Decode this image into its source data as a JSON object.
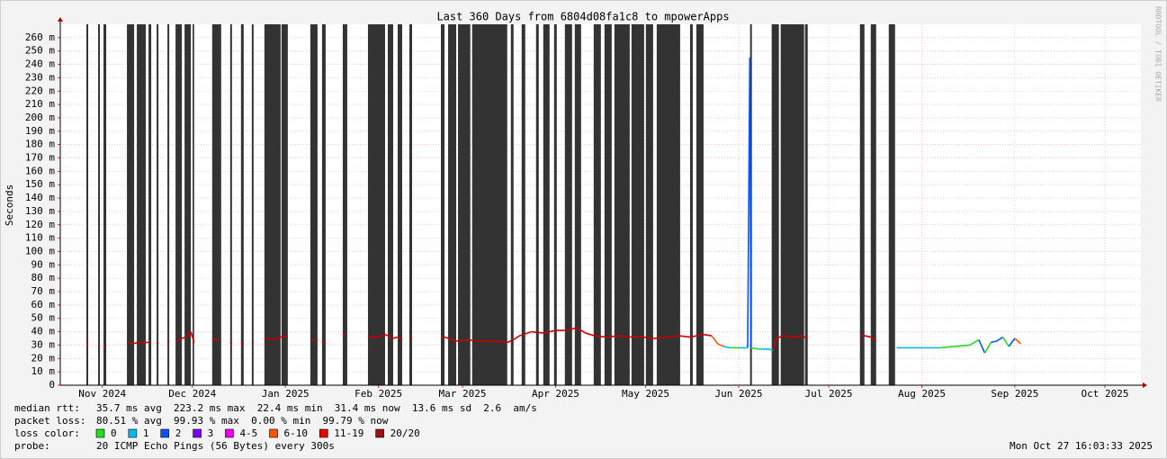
{
  "chart_data": {
    "type": "smokeping",
    "title": "Last 360 Days from 6804d08fa1c8 to mpowerApps",
    "y_label": "Seconds",
    "side_text": "RRDTOOL / TOBI OETIKER",
    "xlim": [
      0,
      360
    ],
    "ylim": [
      0,
      0.27
    ],
    "grid": true,
    "xticks": [
      {
        "value": 14,
        "label": "Nov 2024"
      },
      {
        "value": 44,
        "label": "Dec 2024"
      },
      {
        "value": 75,
        "label": "Jan 2025"
      },
      {
        "value": 106,
        "label": "Feb 2025"
      },
      {
        "value": 134,
        "label": "Mar 2025"
      },
      {
        "value": 165,
        "label": "Apr 2025"
      },
      {
        "value": 195,
        "label": "May 2025"
      },
      {
        "value": 226,
        "label": "Jun 2025"
      },
      {
        "value": 256,
        "label": "Jul 2025"
      },
      {
        "value": 287,
        "label": "Aug 2025"
      },
      {
        "value": 318,
        "label": "Sep 2025"
      },
      {
        "value": 348,
        "label": "Oct 2025"
      }
    ],
    "yticks": [
      0,
      {
        "value": 0.01,
        "label": "10 m"
      },
      {
        "value": 0.02,
        "label": "20 m"
      },
      {
        "value": 0.03,
        "label": "30 m"
      },
      {
        "value": 0.04,
        "label": "40 m"
      },
      {
        "value": 0.05,
        "label": "50 m"
      },
      {
        "value": 0.06,
        "label": "60 m"
      },
      {
        "value": 0.07,
        "label": "70 m"
      },
      {
        "value": 0.08,
        "label": "80 m"
      },
      {
        "value": 0.09,
        "label": "90 m"
      },
      {
        "value": 0.1,
        "label": "100 m"
      },
      {
        "value": 0.11,
        "label": "110 m"
      },
      {
        "value": 0.12,
        "label": "120 m"
      },
      {
        "value": 0.13,
        "label": "130 m"
      },
      {
        "value": 0.14,
        "label": "140 m"
      },
      {
        "value": 0.15,
        "label": "150 m"
      },
      {
        "value": 0.16,
        "label": "160 m"
      },
      {
        "value": 0.17,
        "label": "170 m"
      },
      {
        "value": 0.18,
        "label": "180 m"
      },
      {
        "value": 0.19,
        "label": "190 m"
      },
      {
        "value": 0.2,
        "label": "200 m"
      },
      {
        "value": 0.21,
        "label": "210 m"
      },
      {
        "value": 0.22,
        "label": "220 m"
      },
      {
        "value": 0.23,
        "label": "230 m"
      },
      {
        "value": 0.24,
        "label": "240 m"
      },
      {
        "value": 0.25,
        "label": "250 m"
      },
      {
        "value": 0.26,
        "label": "260 m"
      }
    ],
    "outages": {
      "color": "#333333",
      "x_start": [
        8.7,
        12.6,
        14.4,
        22.2,
        25.5,
        29.4,
        32.1,
        35.7,
        38.4,
        41.4,
        44.1,
        50.6,
        56.6,
        60.2,
        63.8,
        68.0,
        73.7,
        83.3,
        87.2,
        94.1,
        102.5,
        109.1,
        112.4,
        116.3,
        126.8,
        129.2,
        132.5,
        137.2,
        150.1,
        153.7,
        158.5,
        160.9,
        164.5,
        168.1,
        171.4,
        177.7,
        181.3,
        184.6,
        190.3,
        195.1,
        198.7,
        209.8,
        211.9,
        229.8,
        237.0,
        240.0,
        248.1,
        266.4,
        270.0,
        276.0
      ],
      "x_end": [
        9.3,
        13.2,
        15.3,
        24.6,
        28.5,
        30.3,
        32.7,
        36.3,
        40.5,
        43.5,
        44.6,
        53.6,
        57.2,
        61.1,
        64.4,
        73.4,
        75.8,
        85.7,
        88.4,
        95.6,
        108.2,
        110.9,
        113.9,
        117.2,
        128.0,
        131.9,
        136.6,
        148.9,
        151.0,
        154.9,
        159.4,
        163.0,
        165.4,
        170.5,
        173.5,
        180.1,
        183.7,
        189.7,
        194.5,
        197.5,
        206.5,
        210.7,
        214.3,
        230.4,
        239.4,
        247.8,
        249.0,
        267.9,
        271.8,
        278.1
      ]
    },
    "median": {
      "x": [
        8.7,
        9.3,
        null,
        12.6,
        13.2,
        null,
        14.4,
        15.3,
        null,
        22.2,
        24.6,
        25.5,
        28.5,
        30.3,
        null,
        32.1,
        32.7,
        null,
        35.7,
        36.3,
        null,
        38.4,
        40.5,
        42,
        43.5,
        44.6,
        null,
        50.6,
        53.6,
        null,
        56.6,
        57.2,
        null,
        60.2,
        61.1,
        null,
        63.8,
        64.4,
        null,
        68,
        71,
        73.4,
        75.8,
        null,
        83.3,
        85.7,
        null,
        87.2,
        88.4,
        null,
        94.1,
        95.6,
        null,
        102.5,
        106,
        108.2,
        110.9,
        112.4,
        113.9,
        null,
        116.3,
        117.2,
        null,
        126.8,
        128,
        131.9,
        135,
        140,
        145,
        148.9,
        151,
        153,
        157,
        161,
        165,
        169,
        172,
        175,
        178,
        182,
        186,
        190,
        194,
        198,
        202,
        206,
        210,
        214,
        217,
        219,
        221,
        223,
        226,
        229,
        229.7,
        230.1,
        233,
        236,
        237.5,
        238.5,
        241,
        244,
        247,
        249,
        null,
        266.4,
        268,
        270,
        271.8,
        null,
        278.6,
        283,
        288,
        293,
        298,
        303,
        306,
        308,
        310,
        312,
        314,
        316,
        318,
        320
      ],
      "values": [
        0.03,
        0.03,
        null,
        0.029,
        0.029,
        null,
        0.029,
        0.028,
        null,
        0.032,
        0.031,
        0.032,
        0.032,
        0.032,
        null,
        0.032,
        0.031,
        null,
        0.033,
        0.032,
        null,
        0.033,
        0.035,
        0.036,
        0.04,
        0.032,
        null,
        0.035,
        0.033,
        null,
        0.032,
        0.031,
        null,
        0.031,
        0.031,
        null,
        0.031,
        0.031,
        null,
        0.035,
        0.034,
        0.036,
        0.037,
        null,
        0.034,
        0.034,
        null,
        0.033,
        0.031,
        null,
        0.038,
        0.037,
        null,
        0.036,
        0.036,
        0.038,
        0.035,
        0.036,
        0.034,
        null,
        0.037,
        0.035,
        null,
        0.035,
        0.036,
        0.033,
        0.034,
        0.033,
        0.033,
        0.032,
        0.034,
        0.037,
        0.04,
        0.039,
        0.041,
        0.041,
        0.043,
        0.039,
        0.037,
        0.036,
        0.037,
        0.036,
        0.036,
        0.035,
        0.036,
        0.037,
        0.036,
        0.038,
        0.037,
        0.031,
        0.029,
        0.028,
        0.028,
        0.028,
        0.245,
        0.028,
        0.027,
        0.027,
        0.026,
        0.035,
        0.037,
        0.036,
        0.037,
        0.035,
        null,
        0.037,
        0.037,
        0.036,
        0.033,
        null,
        0.028,
        0.028,
        0.028,
        0.028,
        0.029,
        0.03,
        0.034,
        0.024,
        0.032,
        0.033,
        0.036,
        0.029,
        0.035,
        0.031
      ],
      "colors": [
        "#cc0000",
        "#cc0000",
        null,
        "#cc0000",
        "#cc0000",
        null,
        "#cc0000",
        "#cc0000",
        null,
        "#cc0000",
        "#cc0000",
        "#cc0000",
        "#cc0000",
        "#cc0000",
        null,
        "#cc0000",
        "#cc0000",
        null,
        "#cc0000",
        "#cc0000",
        null,
        "#cc0000",
        "#cc0000",
        "#cc0000",
        "#cc0000",
        "#cc0000",
        null,
        "#cc0000",
        "#cc0000",
        null,
        "#cc0000",
        "#cc0000",
        null,
        "#cc0000",
        "#cc0000",
        null,
        "#cc0000",
        "#cc0000",
        null,
        "#cc0000",
        "#cc0000",
        "#cc0000",
        "#cc0000",
        null,
        "#cc0000",
        "#cc0000",
        null,
        "#cc0000",
        "#cc0000",
        null,
        "#cc0000",
        "#cc0000",
        null,
        "#cc0000",
        "#cc0000",
        "#cc0000",
        "#cc0000",
        "#cc0000",
        "#cc0000",
        null,
        "#cc0000",
        "#cc0000",
        null,
        "#cc0000",
        "#cc0000",
        "#cc0000",
        "#cc0000",
        "#cc0000",
        "#cc0000",
        "#cc0000",
        "#cc0000",
        "#cc0000",
        "#cc0000",
        "#cc0000",
        "#cc0000",
        "#cc0000",
        "#cc0000",
        "#cc0000",
        "#cc0000",
        "#cc0000",
        "#cc0000",
        "#cc0000",
        "#cc0000",
        "#cc0000",
        "#cc0000",
        "#cc0000",
        "#cc0000",
        "#cc0000",
        "#cc0000",
        "#ff5500",
        "#ff5500",
        "#00bbee",
        "#22dd22",
        "#00bbee",
        "#0055ff",
        "#0055ff",
        "#22dd22",
        "#00bbee",
        "#00bbee",
        "#cc0000",
        "#cc0000",
        "#cc0000",
        "#cc0000",
        "#cc0000",
        null,
        "#cc0000",
        "#cc0000",
        "#cc0000",
        "#cc0000",
        null,
        "#00bbee",
        "#00bbee",
        "#00bbee",
        "#00bbee",
        "#22dd22",
        "#22dd22",
        "#22dd22",
        "#0055ff",
        "#22dd22",
        "#0055ff",
        "#0055ff",
        "#22dd22",
        "#0055ff",
        "#ff5500"
      ]
    },
    "legend_rows": [
      [
        "median rtt:",
        "35.7 ms avg",
        "223.2 ms max",
        "22.4 ms min",
        "31.4 ms now",
        "13.6 ms sd",
        "2.6",
        "am/s"
      ],
      [
        "packet loss:",
        "80.51 % avg",
        "99.93 % max",
        "0.00 % min",
        "99.79 % now"
      ],
      [
        "probe:",
        "20 ICMP Echo Pings (56 Bytes) every 300s"
      ]
    ],
    "loss_legend": {
      "label": "loss color:",
      "items": [
        {
          "name": "0",
          "color": "#22dd22"
        },
        {
          "name": "1",
          "color": "#00bbee"
        },
        {
          "name": "2",
          "color": "#0055ff"
        },
        {
          "name": "3",
          "color": "#7a00ff"
        },
        {
          "name": "4-5",
          "color": "#ee00ee"
        },
        {
          "name": "6-10",
          "color": "#ff5500"
        },
        {
          "name": "11-19",
          "color": "#ee0000"
        },
        {
          "name": "20/20",
          "color": "#a01010"
        }
      ]
    },
    "timestamp": "Mon Oct 27 16:03:33 2025"
  }
}
